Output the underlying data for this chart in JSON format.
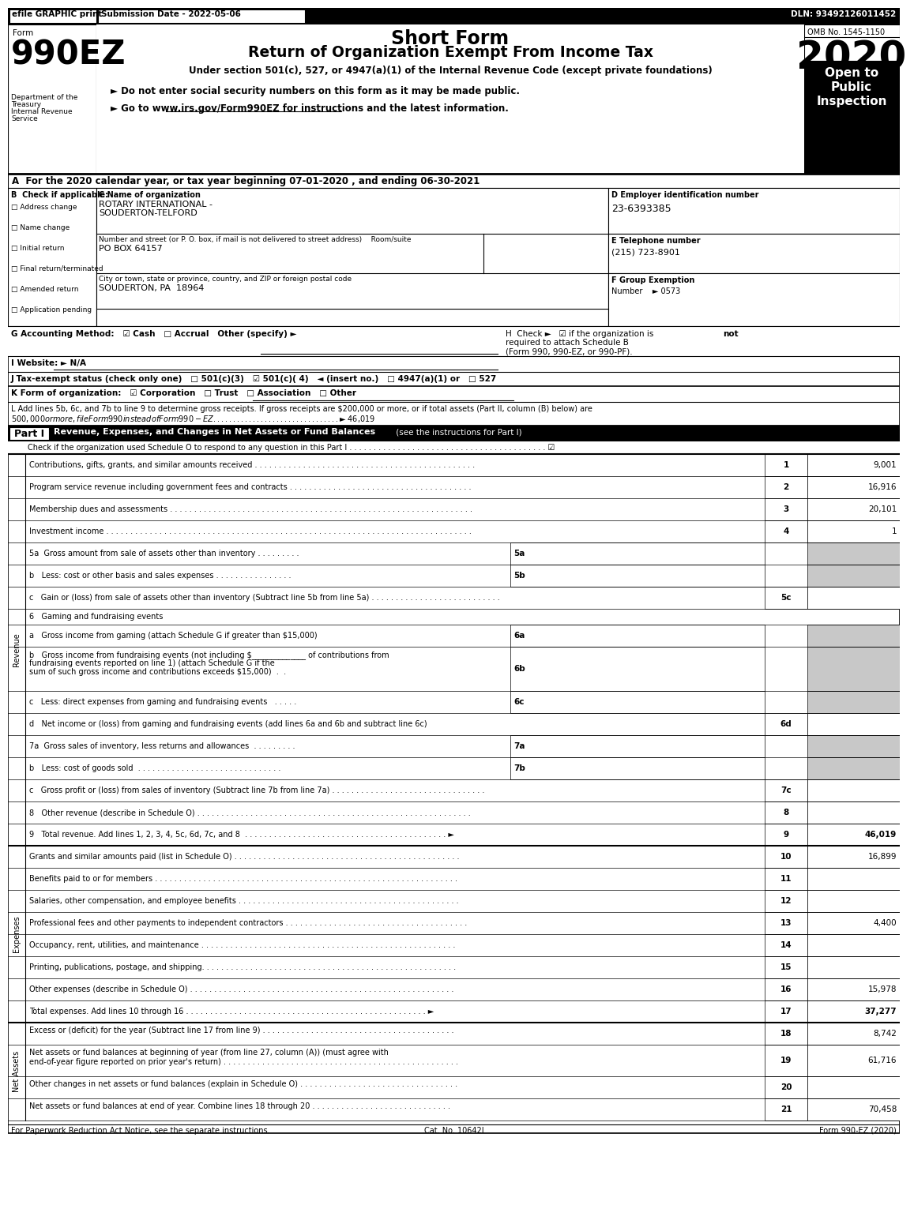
{
  "title_line1": "Short Form",
  "title_line2": "Return of Organization Exempt From Income Tax",
  "subtitle": "Under section 501(c), 527, or 4947(a)(1) of the Internal Revenue Code (except private foundations)",
  "form_number": "990EZ",
  "year": "2020",
  "omb": "OMB No. 1545-1150",
  "efile_text": "efile GRAPHIC print",
  "submission_date": "Submission Date - 2022-05-06",
  "dln": "DLN: 93492126011452",
  "dept1": "Department of the",
  "dept2": "Treasury",
  "dept3": "Internal Revenue",
  "dept4": "Service",
  "bullet1": "► Do not enter social security numbers on this form as it may be made public.",
  "bullet2": "► Go to www.irs.gov/Form990EZ for instructions and the latest information.",
  "bullet2_url": "www.irs.gov/Form990EZ",
  "open_to": "Open to\nPublic\nInspection",
  "section_a": "A  For the 2020 calendar year, or tax year beginning 07-01-2020 , and ending 06-30-2021",
  "section_b_label": "B  Check if applicable:",
  "check_items": [
    "Address change",
    "Name change",
    "Initial return",
    "Final return/terminated",
    "Amended return",
    "Application pending"
  ],
  "section_c_label": "C Name of organization",
  "org_name1": "ROTARY INTERNATIONAL -",
  "org_name2": "SOUDERTON-TELFORD",
  "address_label": "Number and street (or P. O. box, if mail is not delivered to street address)    Room/suite",
  "address": "PO BOX 64157",
  "city_label": "City or town, state or province, country, and ZIP or foreign postal code",
  "city": "SOUDERTON, PA  18964",
  "section_d_label": "D Employer identification number",
  "ein": "23-6393385",
  "section_e_label": "E Telephone number",
  "phone": "(215) 723-8901",
  "section_f_label": "F Group Exemption",
  "group_number": "Number    ► 0573",
  "section_g_label": "G",
  "section_g": "G Accounting Method:   ☑ Cash   □ Accrual   Other (specify) ►",
  "section_h_line1": "H  Check ►   ☑ if the organization is ",
  "section_h_not": "not",
  "section_h_line2": "required to attach Schedule B",
  "section_h_line3": "(Form 990, 990-EZ, or 990-PF).",
  "section_i": "I Website: ► N/A",
  "section_j": "J Tax-exempt status (check only one)   □ 501(c)(3)   ☑ 501(c)( 4)   ◄ (insert no.)   □ 4947(a)(1) or   □ 527",
  "section_k": "K Form of organization:   ☑ Corporation   □ Trust   □ Association   □ Other",
  "section_l1": "L Add lines 5b, 6c, and 7b to line 9 to determine gross receipts. If gross receipts are $200,000 or more, or if total assets (Part II, column (B) below) are",
  "section_l2": "$500,000 or more, file Form 990 instead of Form 990-EZ . . . . . . . . . . . . . . . . . . . . . . . . . . . . . . . . ►$ 46,019",
  "part1_title": "Part I",
  "part1_heading": "Revenue, Expenses, and Changes in Net Assets or Fund Balances",
  "part1_heading2": " (see the instructions for Part I)",
  "part1_check": "Check if the organization used Schedule O to respond to any question in this Part I . . . . . . . . . . . . . . . . . . . . . . . . . . . . . . . . . . . . . . . . . ☑",
  "revenue_rows": [
    {
      "num": "1",
      "label": "Contributions, gifts, grants, and similar amounts received . . . . . . . . . . . . . . . . . . . . . . . . . . . . . . . . . . . . . . . . . . . . . .",
      "line": "1",
      "value": "9,001"
    },
    {
      "num": "2",
      "label": "Program service revenue including government fees and contracts . . . . . . . . . . . . . . . . . . . . . . . . . . . . . . . . . . . . . .",
      "line": "2",
      "value": "16,916"
    },
    {
      "num": "3",
      "label": "Membership dues and assessments . . . . . . . . . . . . . . . . . . . . . . . . . . . . . . . . . . . . . . . . . . . . . . . . . . . . . . . . . . . . . . .",
      "line": "3",
      "value": "20,101"
    },
    {
      "num": "4",
      "label": "Investment income . . . . . . . . . . . . . . . . . . . . . . . . . . . . . . . . . . . . . . . . . . . . . . . . . . . . . . . . . . . . . . . . . . . . . . . . . . . .",
      "line": "4",
      "value": "1"
    }
  ],
  "row5a": {
    "label": "5a  Gross amount from sale of assets other than inventory . . . . . . . . .",
    "sub": "5a",
    "value": ""
  },
  "row5b": {
    "label": "b   Less: cost or other basis and sales expenses . . . . . . . . . . . . . . . .",
    "sub": "5b",
    "value": ""
  },
  "row5c": {
    "label": "c   Gain or (loss) from sale of assets other than inventory (Subtract line 5b from line 5a) . . . . . . . . . . . . . . . . . . . . . . . . . . .",
    "sub": "5c",
    "value": ""
  },
  "row6_label": "6   Gaming and fundraising events",
  "row6a": {
    "label": "a   Gross income from gaming (attach Schedule G if greater than $15,000)",
    "sub": "6a",
    "value": ""
  },
  "row6b_line1": "b   Gross income from fundraising events (not including $______________ of contributions from",
  "row6b_line2": "fundraising events reported on line 1) (attach Schedule G if the",
  "row6b_line3": "sum of such gross income and contributions exceeds $15,000)  .  .",
  "row6b_sub": "6b",
  "row6c": {
    "label": "c   Less: direct expenses from gaming and fundraising events   . . . . .",
    "sub": "6c",
    "value": ""
  },
  "row6d": {
    "label": "d   Net income or (loss) from gaming and fundraising events (add lines 6a and 6b and subtract line 6c)",
    "sub": "6d",
    "value": ""
  },
  "row7a": {
    "label": "7a  Gross sales of inventory, less returns and allowances  . . . . . . . . .",
    "sub": "7a",
    "value": ""
  },
  "row7b": {
    "label": "b   Less: cost of goods sold  . . . . . . . . . . . . . . . . . . . . . . . . . . . . . .",
    "sub": "7b",
    "value": ""
  },
  "row7c": {
    "label": "c   Gross profit or (loss) from sales of inventory (Subtract line 7b from line 7a) . . . . . . . . . . . . . . . . . . . . . . . . . . . . . . . .",
    "sub": "7c",
    "value": ""
  },
  "row8": {
    "label": "8   Other revenue (describe in Schedule O) . . . . . . . . . . . . . . . . . . . . . . . . . . . . . . . . . . . . . . . . . . . . . . . . . . . . . . . . .",
    "sub": "8",
    "value": ""
  },
  "row9": {
    "label": "9   Total revenue. Add lines 1, 2, 3, 4, 5c, 6d, 7c, and 8  . . . . . . . . . . . . . . . . . . . . . . . . . . . . . . . . . . . . . . . . . . ►",
    "sub": "9",
    "value": "46,019"
  },
  "expenses_rows": [
    {
      "num": "10",
      "label": "Grants and similar amounts paid (list in Schedule O) . . . . . . . . . . . . . . . . . . . . . . . . . . . . . . . . . . . . . . . . . . . . . . .",
      "line": "10",
      "value": "16,899"
    },
    {
      "num": "11",
      "label": "Benefits paid to or for members . . . . . . . . . . . . . . . . . . . . . . . . . . . . . . . . . . . . . . . . . . . . . . . . . . . . . . . . . . . . . . .",
      "line": "11",
      "value": ""
    },
    {
      "num": "12",
      "label": "Salaries, other compensation, and employee benefits . . . . . . . . . . . . . . . . . . . . . . . . . . . . . . . . . . . . . . . . . . . . . .",
      "line": "12",
      "value": ""
    },
    {
      "num": "13",
      "label": "Professional fees and other payments to independent contractors . . . . . . . . . . . . . . . . . . . . . . . . . . . . . . . . . . . . . .",
      "line": "13",
      "value": "4,400"
    },
    {
      "num": "14",
      "label": "Occupancy, rent, utilities, and maintenance . . . . . . . . . . . . . . . . . . . . . . . . . . . . . . . . . . . . . . . . . . . . . . . . . . . . .",
      "line": "14",
      "value": ""
    },
    {
      "num": "15",
      "label": "Printing, publications, postage, and shipping. . . . . . . . . . . . . . . . . . . . . . . . . . . . . . . . . . . . . . . . . . . . . . . . . . . . .",
      "line": "15",
      "value": ""
    },
    {
      "num": "16",
      "label": "Other expenses (describe in Schedule O) . . . . . . . . . . . . . . . . . . . . . . . . . . . . . . . . . . . . . . . . . . . . . . . . . . . . . . .",
      "line": "16",
      "value": "15,978"
    },
    {
      "num": "17",
      "label": "Total expenses. Add lines 10 through 16 . . . . . . . . . . . . . . . . . . . . . . . . . . . . . . . . . . . . . . . . . . . . . . . . . . ►",
      "line": "17",
      "value": "37,277",
      "bold": true
    }
  ],
  "netassets_rows": [
    {
      "num": "18",
      "label": "Excess or (deficit) for the year (Subtract line 17 from line 9) . . . . . . . . . . . . . . . . . . . . . . . . . . . . . . . . . . . . . . . .",
      "line": "18",
      "value": "8,742"
    },
    {
      "num": "19",
      "label": "Net assets or fund balances at beginning of year (from line 27, column (A)) (must agree with",
      "label2": "end-of-year figure reported on prior year's return) . . . . . . . . . . . . . . . . . . . . . . . . . . . . . . . . . . . . . . . . . . . . . . . . .",
      "line": "19",
      "value": "61,716"
    },
    {
      "num": "20",
      "label": "Other changes in net assets or fund balances (explain in Schedule O) . . . . . . . . . . . . . . . . . . . . . . . . . . . . . . . . .",
      "line": "20",
      "value": ""
    },
    {
      "num": "21",
      "label": "Net assets or fund balances at end of year. Combine lines 18 through 20 . . . . . . . . . . . . . . . . . . . . . . . . . . . . .",
      "line": "21",
      "value": "70,458"
    }
  ],
  "footer1": "For Paperwork Reduction Act Notice, see the separate instructions.",
  "footer2": "Cat. No. 10642I",
  "footer3": "Form 990-EZ (2020)",
  "sidebar_revenue": "Revenue",
  "sidebar_expenses": "Expenses",
  "sidebar_netassets": "Net Assets"
}
